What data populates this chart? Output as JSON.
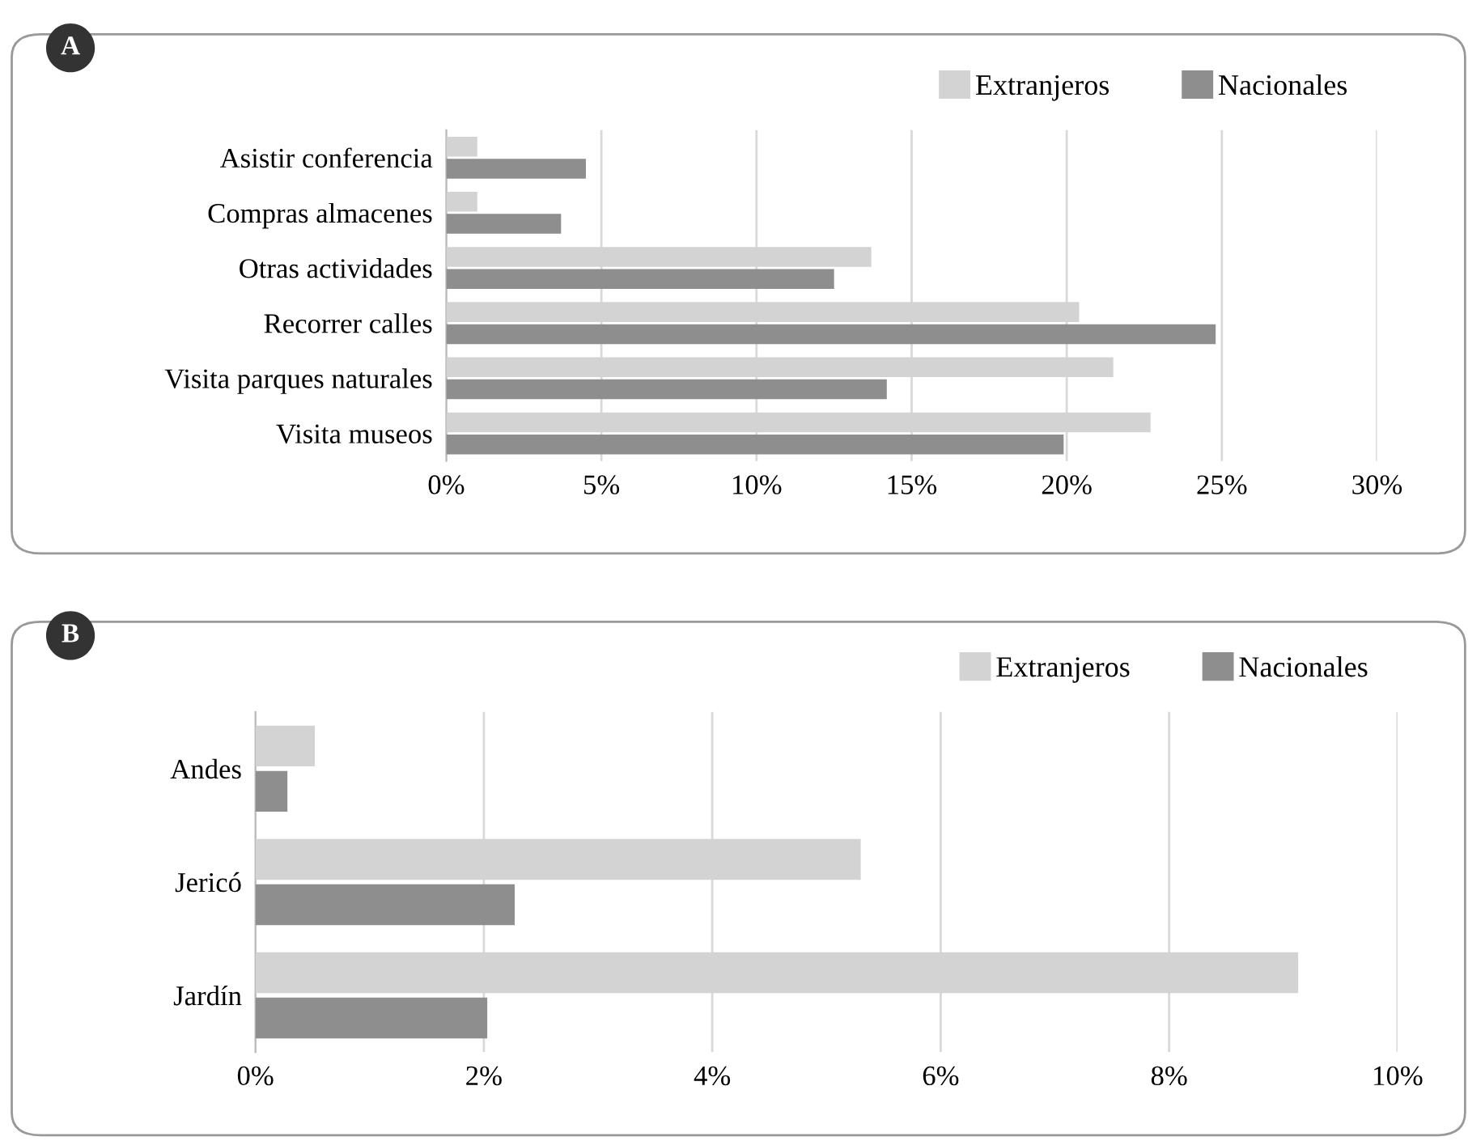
{
  "chart_data": [
    {
      "type": "bar",
      "title": "A",
      "orientation": "horizontal",
      "categories": [
        "Asistir conferencia",
        "Compras almacenes",
        "Otras actividades",
        "Recorrer calles",
        "Visita parques naturales",
        "Visita museos"
      ],
      "series": [
        {
          "name": "Extranjeros",
          "color": "#d3d3d3",
          "values": [
            1.0,
            1.0,
            13.7,
            20.4,
            21.5,
            22.7
          ]
        },
        {
          "name": "Nacionales",
          "color": "#8e8e8e",
          "values": [
            4.5,
            3.7,
            12.5,
            24.8,
            14.2,
            19.9
          ]
        }
      ],
      "xlim": [
        0,
        30
      ],
      "xticks": [
        {
          "value": 0,
          "label": "0%"
        },
        {
          "value": 5,
          "label": "5%"
        },
        {
          "value": 10,
          "label": "10%"
        },
        {
          "value": 15,
          "label": "15%"
        },
        {
          "value": 20,
          "label": "20%"
        },
        {
          "value": 25,
          "label": "25%"
        },
        {
          "value": 30,
          "label": "30%"
        }
      ],
      "grid": "x",
      "legend": "top right"
    },
    {
      "type": "bar",
      "title": "B",
      "orientation": "horizontal",
      "categories": [
        "Andes",
        "Jericó",
        "Jardín"
      ],
      "series": [
        {
          "name": "Extranjeros",
          "color": "#d3d3d3",
          "values": [
            0.52,
            5.3,
            9.13
          ]
        },
        {
          "name": "Nacionales",
          "color": "#8e8e8e",
          "values": [
            0.28,
            2.27,
            2.03
          ]
        }
      ],
      "xlim": [
        0,
        10
      ],
      "xticks": [
        {
          "value": 0,
          "label": "0%"
        },
        {
          "value": 2,
          "label": "2%"
        },
        {
          "value": 4,
          "label": "4%"
        },
        {
          "value": 6,
          "label": "6%"
        },
        {
          "value": 8,
          "label": "8%"
        },
        {
          "value": 10,
          "label": "10%"
        }
      ],
      "grid": "x",
      "legend": "top right"
    }
  ]
}
